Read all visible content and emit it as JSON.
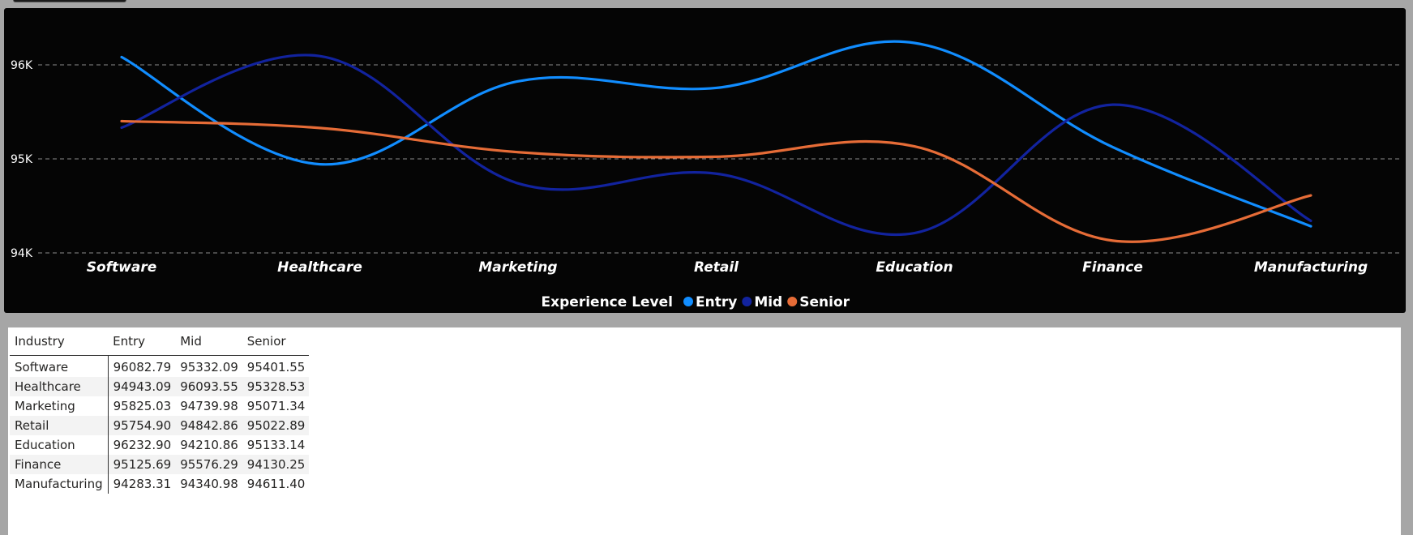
{
  "chart_data": {
    "type": "line",
    "categories": [
      "Software",
      "Healthcare",
      "Marketing",
      "Retail",
      "Education",
      "Finance",
      "Manufacturing"
    ],
    "series": [
      {
        "name": "Entry",
        "color": "#118dff",
        "values": [
          96082.79,
          94943.09,
          95825.03,
          95754.9,
          96232.9,
          95125.69,
          94283.31
        ]
      },
      {
        "name": "Mid",
        "color": "#12239e",
        "values": [
          95332.09,
          96093.55,
          94739.98,
          94842.86,
          94210.86,
          95576.29,
          94340.98
        ]
      },
      {
        "name": "Senior",
        "color": "#e66c37",
        "values": [
          95401.55,
          95328.53,
          95071.34,
          95022.89,
          95133.14,
          94130.25,
          94611.4
        ]
      }
    ],
    "y_ticks": [
      {
        "value": 94000,
        "label": "94K"
      },
      {
        "value": 95000,
        "label": "95K"
      },
      {
        "value": 96000,
        "label": "96K"
      }
    ],
    "ylim": [
      94000,
      96000
    ],
    "grid": true,
    "legend": {
      "title": "Experience Level",
      "placement": "bottom-center"
    },
    "xlabel": "",
    "ylabel": "",
    "title": ""
  },
  "table": {
    "headers": [
      "Industry",
      "Entry",
      "Mid",
      "Senior"
    ],
    "rows": [
      [
        "Software",
        "96082.79",
        "95332.09",
        "95401.55"
      ],
      [
        "Healthcare",
        "94943.09",
        "96093.55",
        "95328.53"
      ],
      [
        "Marketing",
        "95825.03",
        "94739.98",
        "95071.34"
      ],
      [
        "Retail",
        "95754.90",
        "94842.86",
        "95022.89"
      ],
      [
        "Education",
        "96232.90",
        "94210.86",
        "95133.14"
      ],
      [
        "Finance",
        "95125.69",
        "95576.29",
        "94130.25"
      ],
      [
        "Manufacturing",
        "94283.31",
        "94340.98",
        "94611.40"
      ]
    ]
  }
}
